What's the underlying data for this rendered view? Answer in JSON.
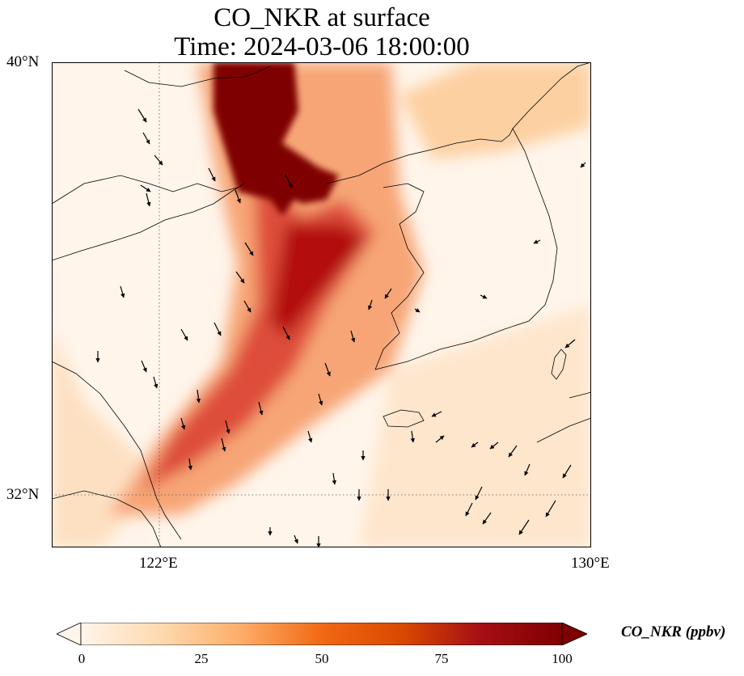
{
  "title_line1": "CO_NKR at surface",
  "title_line2": "Time: 2024-03-06 18:00:00",
  "lat_labels": [
    "40°N",
    "32°N"
  ],
  "lon_labels": [
    "122°E",
    "130°E"
  ],
  "colorbar": {
    "label": "CO_NKR (ppbv)",
    "ticks": [
      "0",
      "25",
      "50",
      "75",
      "100"
    ],
    "colors": [
      "#fff5eb",
      "#fdd9ad",
      "#fdae6b",
      "#f16913",
      "#d94801",
      "#a50f15",
      "#7f0000"
    ]
  },
  "colors": {
    "plume_max": "#7f0000",
    "plume_high": "#b30f0f",
    "plume_mid": "#de4e3a",
    "moderate": "#f5a77a",
    "low": "#fde0c2",
    "background": "#fff5eb",
    "coast": "#000000"
  }
}
